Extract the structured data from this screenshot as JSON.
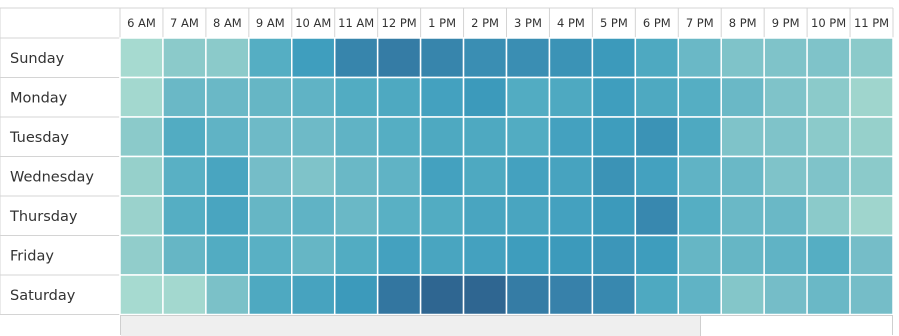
{
  "chart_data": {
    "type": "heatmap",
    "title": "",
    "xlabel": "",
    "ylabel": "",
    "x": [
      "6 AM",
      "7 AM",
      "8 AM",
      "9 AM",
      "10 AM",
      "11 AM",
      "12 PM",
      "1 PM",
      "2 PM",
      "3 PM",
      "4 PM",
      "5 PM",
      "6 PM",
      "7 PM",
      "8 PM",
      "9 PM",
      "10 PM",
      "11 PM"
    ],
    "y": [
      "Sunday",
      "Monday",
      "Tuesday",
      "Wednesday",
      "Thursday",
      "Friday",
      "Saturday"
    ],
    "values": [
      [
        0.1,
        0.25,
        0.25,
        0.5,
        0.65,
        0.8,
        0.85,
        0.8,
        0.75,
        0.75,
        0.72,
        0.68,
        0.55,
        0.4,
        0.3,
        0.3,
        0.3,
        0.25
      ],
      [
        0.12,
        0.4,
        0.4,
        0.42,
        0.45,
        0.52,
        0.55,
        0.62,
        0.68,
        0.52,
        0.55,
        0.65,
        0.55,
        0.5,
        0.4,
        0.3,
        0.25,
        0.15
      ],
      [
        0.25,
        0.52,
        0.45,
        0.38,
        0.38,
        0.45,
        0.5,
        0.55,
        0.55,
        0.52,
        0.62,
        0.66,
        0.72,
        0.55,
        0.3,
        0.3,
        0.25,
        0.2
      ],
      [
        0.2,
        0.48,
        0.58,
        0.35,
        0.3,
        0.4,
        0.45,
        0.62,
        0.55,
        0.62,
        0.6,
        0.72,
        0.62,
        0.45,
        0.4,
        0.3,
        0.3,
        0.25
      ],
      [
        0.18,
        0.5,
        0.58,
        0.42,
        0.45,
        0.4,
        0.48,
        0.52,
        0.58,
        0.58,
        0.62,
        0.68,
        0.78,
        0.5,
        0.4,
        0.4,
        0.25,
        0.15
      ],
      [
        0.22,
        0.42,
        0.52,
        0.48,
        0.42,
        0.52,
        0.62,
        0.58,
        0.62,
        0.66,
        0.68,
        0.7,
        0.66,
        0.42,
        0.42,
        0.45,
        0.5,
        0.35
      ],
      [
        0.1,
        0.12,
        0.32,
        0.55,
        0.6,
        0.68,
        0.88,
        0.96,
        0.96,
        0.85,
        0.82,
        0.78,
        0.55,
        0.45,
        0.28,
        0.35,
        0.4,
        0.35
      ]
    ]
  },
  "colors": {
    "scale": [
      "#b4e2d7",
      "#9dd4cc",
      "#78bfc8",
      "#55aec3",
      "#3d9cbd",
      "#367fa8",
      "#2d5e8a"
    ],
    "label_text": "#333333",
    "cell_border": "#ffffff",
    "header_border": "#d4d4d4"
  }
}
